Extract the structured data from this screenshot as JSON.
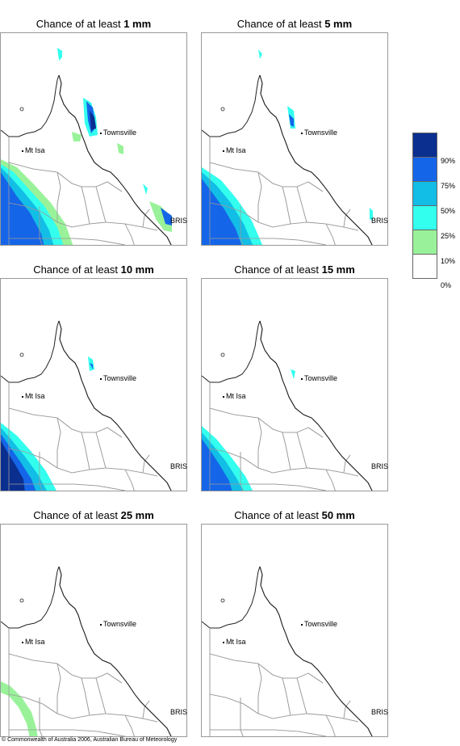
{
  "title_prefix": "Chance of at least",
  "panels": [
    {
      "amount": "1 mm"
    },
    {
      "amount": "5 mm"
    },
    {
      "amount": "10 mm"
    },
    {
      "amount": "15 mm"
    },
    {
      "amount": "25 mm"
    },
    {
      "amount": "50 mm"
    }
  ],
  "places": {
    "townsville": "Townsville",
    "mt_isa": "Mt Isa",
    "brisbane": "BRIS"
  },
  "legend": {
    "colors": [
      "#0a2f8f",
      "#1565e8",
      "#12bde6",
      "#33ffee",
      "#99f299",
      "#ffffff"
    ],
    "labels": [
      "90%",
      "75%",
      "50%",
      "25%",
      "10%",
      "0%"
    ]
  },
  "footer": "© Commonwealth of Australia 2006, Australian Bureau of Meteorology"
}
